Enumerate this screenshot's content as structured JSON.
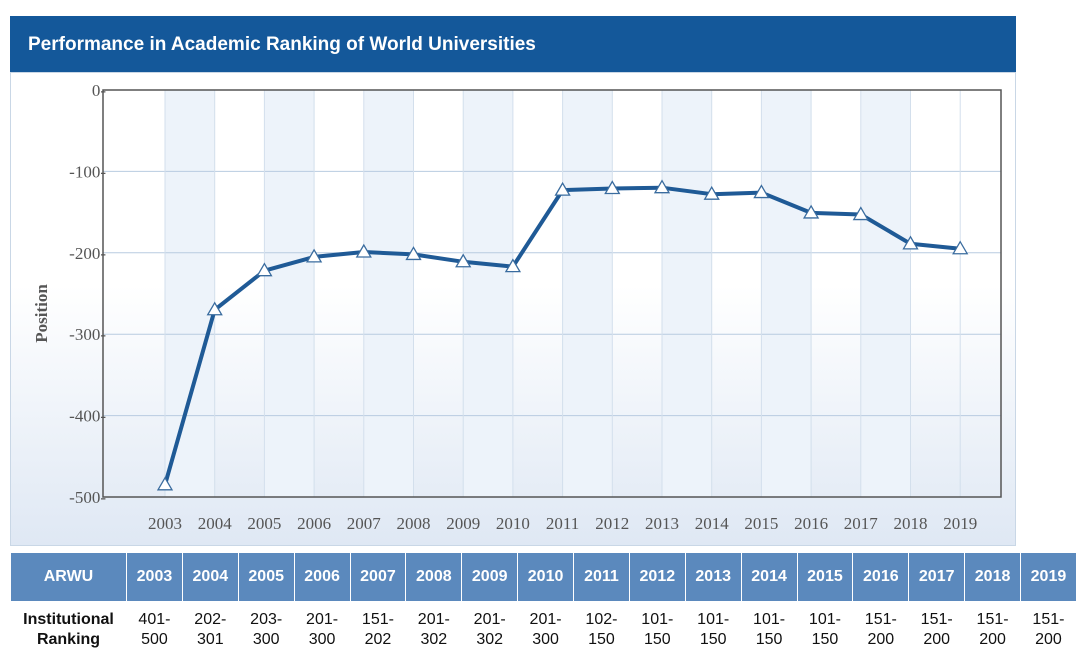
{
  "header": {
    "title": "Performance in Academic Ranking of World Universities"
  },
  "colors": {
    "header_bg": "#14589a",
    "line": "#1f5a96",
    "table_header_bg": "#5b89bd",
    "gridline": "#b8cbe0"
  },
  "chart_data": {
    "type": "line",
    "title": "",
    "xlabel": "",
    "ylabel": "Position",
    "x": [
      "2003",
      "2004",
      "2005",
      "2006",
      "2007",
      "2008",
      "2009",
      "2010",
      "2011",
      "2012",
      "2013",
      "2014",
      "2015",
      "2016",
      "2017",
      "2018",
      "2019"
    ],
    "yticks": [
      "0-",
      "-100-",
      "-200-",
      "-300-",
      "-400-",
      "-500-"
    ],
    "ylim": [
      -500,
      0
    ],
    "grid": true,
    "marker": "triangle",
    "series": [
      {
        "values": [
          -485,
          -270,
          -222,
          -205,
          -199,
          -202,
          -211,
          -217,
          -123,
          -121,
          -120,
          -128,
          -126,
          -151,
          -153,
          -189,
          -195
        ]
      }
    ]
  },
  "table": {
    "header_label": "ARWU",
    "row_label": "Institutional Ranking",
    "years": [
      "2003",
      "2004",
      "2005",
      "2006",
      "2007",
      "2008",
      "2009",
      "2010",
      "2011",
      "2012",
      "2013",
      "2014",
      "2015",
      "2016",
      "2017",
      "2018",
      "2019"
    ],
    "ranges": [
      [
        "401-",
        "500"
      ],
      [
        "202-",
        "301"
      ],
      [
        "203-",
        "300"
      ],
      [
        "201-",
        "300"
      ],
      [
        "151-",
        "202"
      ],
      [
        "201-",
        "302"
      ],
      [
        "201-",
        "302"
      ],
      [
        "201-",
        "300"
      ],
      [
        "102-",
        "150"
      ],
      [
        "101-",
        "150"
      ],
      [
        "101-",
        "150"
      ],
      [
        "101-",
        "150"
      ],
      [
        "101-",
        "150"
      ],
      [
        "151-",
        "200"
      ],
      [
        "151-",
        "200"
      ],
      [
        "151-",
        "200"
      ],
      [
        "151-",
        "200"
      ]
    ]
  }
}
